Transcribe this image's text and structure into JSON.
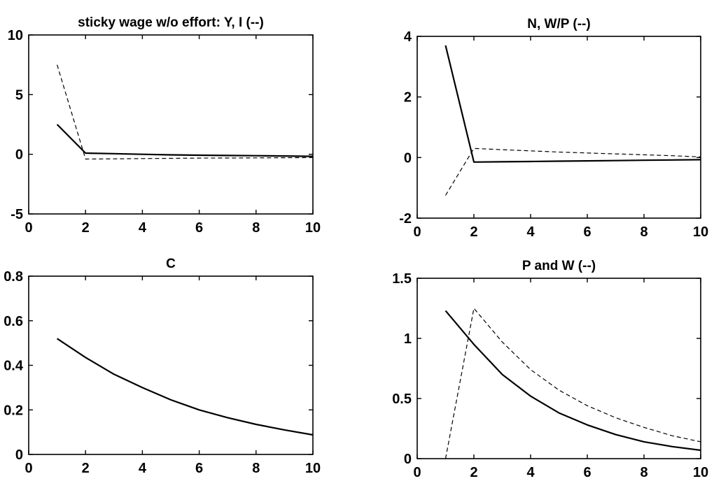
{
  "chart_data": [
    {
      "type": "line",
      "title": "sticky wage w/o effort: Y, I (--)",
      "xlim": [
        0,
        10
      ],
      "ylim": [
        -5,
        10
      ],
      "xticks": [
        0,
        2,
        4,
        6,
        8,
        10
      ],
      "yticks": [
        -5,
        0,
        5,
        10
      ],
      "grid": false,
      "series": [
        {
          "style": "solid",
          "x": [
            1,
            2,
            3,
            4,
            5,
            6,
            7,
            8,
            9,
            10
          ],
          "y": [
            2.5,
            0.1,
            0.05,
            0.0,
            -0.05,
            -0.08,
            -0.1,
            -0.12,
            -0.14,
            -0.17
          ]
        },
        {
          "style": "dashed",
          "x": [
            1,
            2,
            3,
            4,
            5,
            6,
            7,
            8,
            9,
            10
          ],
          "y": [
            7.5,
            -0.4,
            -0.38,
            -0.36,
            -0.34,
            -0.32,
            -0.31,
            -0.3,
            -0.29,
            -0.28
          ]
        }
      ]
    },
    {
      "type": "line",
      "title": "N, W/P (--)",
      "xlim": [
        0,
        10
      ],
      "ylim": [
        -2,
        4
      ],
      "xticks": [
        0,
        2,
        4,
        6,
        8,
        10
      ],
      "yticks": [
        -2,
        0,
        2,
        4
      ],
      "grid": false,
      "series": [
        {
          "style": "solid",
          "x": [
            1,
            2,
            3,
            4,
            5,
            6,
            7,
            8,
            9,
            10
          ],
          "y": [
            3.7,
            -0.15,
            -0.14,
            -0.13,
            -0.12,
            -0.11,
            -0.1,
            -0.09,
            -0.08,
            -0.07
          ]
        },
        {
          "style": "dashed",
          "x": [
            1,
            2,
            3,
            4,
            5,
            6,
            7,
            8,
            9,
            10
          ],
          "y": [
            -1.25,
            0.3,
            0.26,
            0.22,
            0.18,
            0.15,
            0.12,
            0.09,
            0.06,
            0.02
          ]
        }
      ]
    },
    {
      "type": "line",
      "title": "C",
      "xlim": [
        0,
        10
      ],
      "ylim": [
        0,
        0.8
      ],
      "xticks": [
        0,
        2,
        4,
        6,
        8,
        10
      ],
      "yticks": [
        0,
        0.2,
        0.4,
        0.6,
        0.8
      ],
      "grid": false,
      "series": [
        {
          "style": "solid",
          "x": [
            1,
            2,
            3,
            4,
            5,
            6,
            7,
            8,
            9,
            10
          ],
          "y": [
            0.52,
            0.435,
            0.36,
            0.3,
            0.245,
            0.2,
            0.165,
            0.135,
            0.11,
            0.088
          ]
        }
      ]
    },
    {
      "type": "line",
      "title": "P and W (--)",
      "xlim": [
        0,
        10
      ],
      "ylim": [
        0,
        1.5
      ],
      "xticks": [
        0,
        2,
        4,
        6,
        8,
        10
      ],
      "yticks": [
        0,
        0.5,
        1,
        1.5
      ],
      "grid": false,
      "series": [
        {
          "style": "solid",
          "x": [
            1,
            2,
            3,
            4,
            5,
            6,
            7,
            8,
            9,
            10
          ],
          "y": [
            1.23,
            0.95,
            0.7,
            0.52,
            0.38,
            0.28,
            0.2,
            0.14,
            0.1,
            0.07
          ]
        },
        {
          "style": "dashed",
          "x": [
            1,
            2,
            3,
            4,
            5,
            6,
            7,
            8,
            9,
            10
          ],
          "y": [
            0.0,
            1.25,
            0.97,
            0.74,
            0.57,
            0.44,
            0.34,
            0.26,
            0.19,
            0.14
          ]
        }
      ]
    }
  ]
}
